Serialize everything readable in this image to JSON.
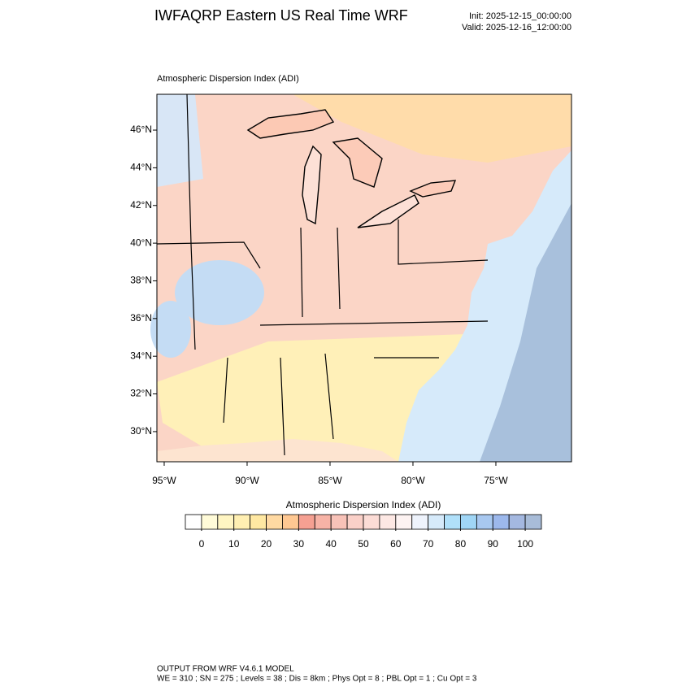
{
  "header": {
    "title": "IWFAQRP Eastern US Real Time WRF",
    "init": "Init: 2025-12-15_00:00:00",
    "valid": "Valid: 2025-12-16_12:00:00"
  },
  "map": {
    "subtitle": "Atmospheric Dispersion Index   (ADI)",
    "latlim": [
      28.4,
      47.9
    ],
    "lat_ticks": [
      {
        "value": 30,
        "label": "30°N"
      },
      {
        "value": 32,
        "label": "32°N"
      },
      {
        "value": 34,
        "label": "34°N"
      },
      {
        "value": 36,
        "label": "36°N"
      },
      {
        "value": 38,
        "label": "38°N"
      },
      {
        "value": 40,
        "label": "40°N"
      },
      {
        "value": 42,
        "label": "42°N"
      },
      {
        "value": 44,
        "label": "44°N"
      },
      {
        "value": 46,
        "label": "46°N"
      }
    ],
    "lonlim": [
      -95.44,
      -70.44
    ],
    "lon_ticks": [
      {
        "value": -95,
        "label": "95°W"
      },
      {
        "value": -90,
        "label": "90°W"
      },
      {
        "value": -85,
        "label": "85°W"
      },
      {
        "value": -80,
        "label": "80°W"
      },
      {
        "value": -75,
        "label": "75°W"
      }
    ]
  },
  "colorbar": {
    "title": "Atmospheric Dispersion Index  (ADI)",
    "range": [
      -5,
      105
    ],
    "ticks": [
      0,
      10,
      20,
      30,
      40,
      50,
      60,
      70,
      80,
      90,
      100
    ],
    "colors": [
      "#ffffff",
      "#fffbd8",
      "#fff5c2",
      "#ffefb2",
      "#ffe8a2",
      "#ffd9a2",
      "#ffc892",
      "#f5a092",
      "#f7b3a6",
      "#f8c2b8",
      "#fad0c8",
      "#fcdcd6",
      "#fde8e4",
      "#fdf3f2",
      "#eef3fc",
      "#d6eafa",
      "#b0e0fa",
      "#a0d6f6",
      "#a8c8f0",
      "#9cb8ec",
      "#a4b8e0",
      "#a8bcd8"
    ]
  },
  "footer": {
    "line1": "OUTPUT FROM WRF V4.6.1 MODEL",
    "line2": "WE = 310 ; SN = 275 ; Levels = 38 ; Dis = 8km ; Phys Opt = 8 ; PBL Opt = 1 ; Cu Opt = 3"
  }
}
